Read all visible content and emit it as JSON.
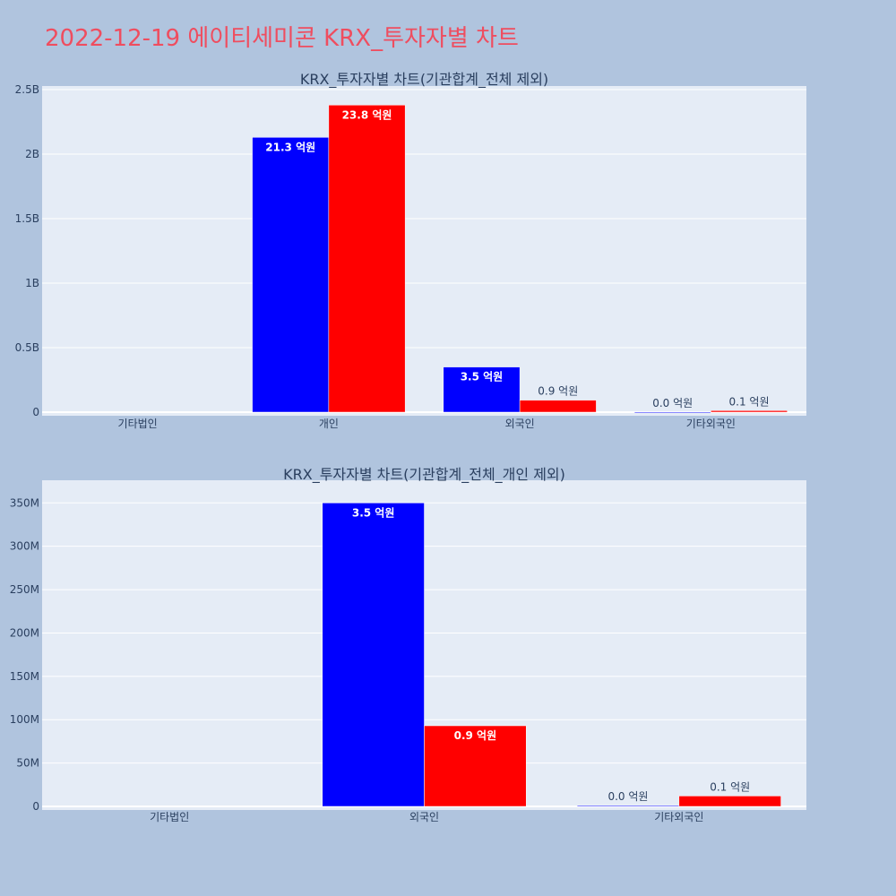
{
  "title": "2022-12-19 에이티세미콘 KRX_투자자별 차트",
  "colors": {
    "buy": "#0000ff",
    "sell": "#ff0000",
    "plot_bg": "#e5ecf6",
    "page_bg": "#b0c4de",
    "title": "#ef4d5f"
  },
  "chart_data": [
    {
      "type": "bar",
      "title": "KRX_투자자별 차트(기관합계_전체 제외)",
      "categories": [
        "기타법인",
        "개인",
        "외국인",
        "기타외국인"
      ],
      "series": [
        {
          "color": "#0000ff",
          "values": [
            0,
            2130000000,
            350000000,
            1000000
          ],
          "labels": [
            "",
            "21.3 억원",
            "3.5 억원",
            "0.0 억원"
          ]
        },
        {
          "color": "#ff0000",
          "values": [
            0,
            2380000000,
            93000000,
            12000000
          ],
          "labels": [
            "",
            "23.8 억원",
            "0.9 억원",
            "0.1 억원"
          ]
        }
      ],
      "ylim": [
        0,
        2500000000
      ],
      "yticks": [
        0,
        500000000,
        1000000000,
        1500000000,
        2000000000,
        2500000000
      ],
      "ytick_labels": [
        "0",
        "0.5B",
        "1B",
        "1.5B",
        "2B",
        "2.5B"
      ],
      "grid": true
    },
    {
      "type": "bar",
      "title": "KRX_투자자별 차트(기관합계_전체_개인 제외)",
      "categories": [
        "기타법인",
        "외국인",
        "기타외국인"
      ],
      "series": [
        {
          "color": "#0000ff",
          "values": [
            0,
            350000000,
            1000000
          ],
          "labels": [
            "",
            "3.5 억원",
            "0.0 억원"
          ]
        },
        {
          "color": "#ff0000",
          "values": [
            0,
            93000000,
            12000000
          ],
          "labels": [
            "",
            "0.9 억원",
            "0.1 억원"
          ]
        }
      ],
      "ylim": [
        0,
        372000000
      ],
      "yticks": [
        0,
        50000000,
        100000000,
        150000000,
        200000000,
        250000000,
        300000000,
        350000000
      ],
      "ytick_labels": [
        "0",
        "50M",
        "100M",
        "150M",
        "200M",
        "250M",
        "300M",
        "350M"
      ],
      "grid": true
    }
  ]
}
